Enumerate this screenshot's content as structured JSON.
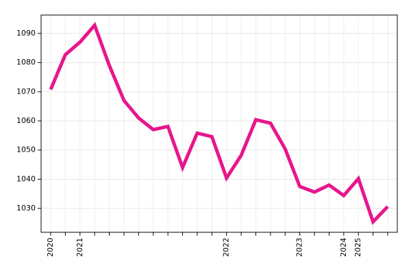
{
  "chart_data": {
    "type": "line",
    "categories": [
      "2020",
      null,
      "2021",
      null,
      null,
      null,
      null,
      null,
      null,
      null,
      null,
      null,
      "2022",
      null,
      null,
      null,
      null,
      "2023",
      null,
      null,
      "2024",
      "2025",
      null,
      null
    ],
    "values": [
      1070.8,
      1082.7,
      1087,
      1092.8,
      1079,
      1067,
      1061,
      1057,
      1058.1,
      1044,
      1055.8,
      1054.6,
      1040.4,
      1048.2,
      1060.4,
      1059.2,
      1050.4,
      1037.5,
      1035.6,
      1038,
      1034.4,
      1040.2,
      1025.4,
      1030.6
    ],
    "color": "#e8168c",
    "ylim": [
      1021.8,
      1096.3
    ],
    "yticks": [
      1030,
      1040,
      1050,
      1060,
      1070,
      1080,
      1090
    ],
    "grid": true
  }
}
